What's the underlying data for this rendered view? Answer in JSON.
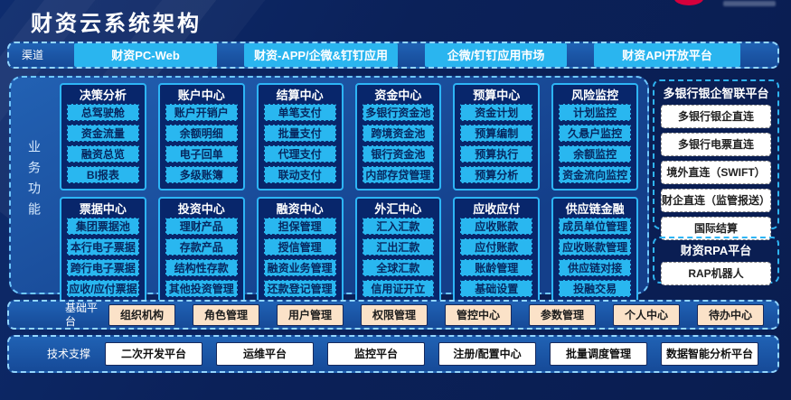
{
  "header": {
    "title": "财资云系统架构"
  },
  "channels": {
    "label": "渠道",
    "items": [
      "财资PC-Web",
      "财资-APP/企微&钉钉应用",
      "企微/钉钉应用市场",
      "财资API开放平台"
    ]
  },
  "business": {
    "label": "业务功能",
    "modules": [
      {
        "title": "决策分析",
        "items": [
          "总驾驶舱",
          "资金流量",
          "融资总览",
          "BI报表"
        ]
      },
      {
        "title": "账户中心",
        "items": [
          "账户开销户",
          "余额明细",
          "电子回单",
          "多级账簿"
        ]
      },
      {
        "title": "结算中心",
        "items": [
          "单笔支付",
          "批量支付",
          "代理支付",
          "联动支付"
        ]
      },
      {
        "title": "资金中心",
        "items": [
          "多银行资金池",
          "跨境资金池",
          "银行资金池",
          "内部存贷管理"
        ]
      },
      {
        "title": "预算中心",
        "items": [
          "资金计划",
          "预算编制",
          "预算执行",
          "预算分析"
        ]
      },
      {
        "title": "风险监控",
        "items": [
          "计划监控",
          "久悬户监控",
          "余额监控",
          "资金流向监控"
        ]
      },
      {
        "title": "票据中心",
        "items": [
          "集团票据池",
          "本行电子票据",
          "跨行电子票据",
          "应收/应付票据"
        ]
      },
      {
        "title": "投资中心",
        "items": [
          "理财产品",
          "存款产品",
          "结构性存款",
          "其他投资管理"
        ]
      },
      {
        "title": "融资中心",
        "items": [
          "担保管理",
          "授信管理",
          "融资业务管理",
          "还款登记管理"
        ]
      },
      {
        "title": "外汇中心",
        "items": [
          "汇入汇款",
          "汇出汇款",
          "全球汇款",
          "信用证开立"
        ]
      },
      {
        "title": "应收应付",
        "items": [
          "应收账款",
          "应付账款",
          "账龄管理",
          "基础设置"
        ]
      },
      {
        "title": "供应链金融",
        "items": [
          "成员单位管理",
          "应收账款管理",
          "供应链对接",
          "投融交易"
        ]
      }
    ]
  },
  "right_panels": [
    {
      "title": "多银行银企智联平台",
      "items": [
        "多银行银企直连",
        "多银行电票直连",
        "境外直连（SWIFT）",
        "财企直连（监管报送）",
        "国际结算"
      ]
    },
    {
      "title": "财资RPA平台",
      "items": [
        "RAP机器人"
      ]
    }
  ],
  "base_platform": {
    "label": "基础平台",
    "items": [
      "组织机构",
      "角色管理",
      "用户管理",
      "权限管理",
      "管控中心",
      "参数管理",
      "个人中心",
      "待办中心"
    ]
  },
  "tech_support": {
    "label": "技术支撑",
    "items": [
      "二次开发平台",
      "运维平台",
      "监控平台",
      "注册/配置中心",
      "批量调度管理",
      "数据智能分析平台"
    ]
  },
  "colors": {
    "background": "#0b2159",
    "band_blue": "#1d5aab",
    "module_navy": "#08266b",
    "accent_cyan": "#29b7f0",
    "dashed_border": "#93d6ff",
    "peach": "#fbe2c8",
    "white": "#ffffff",
    "logo_red": "#d5003c"
  }
}
